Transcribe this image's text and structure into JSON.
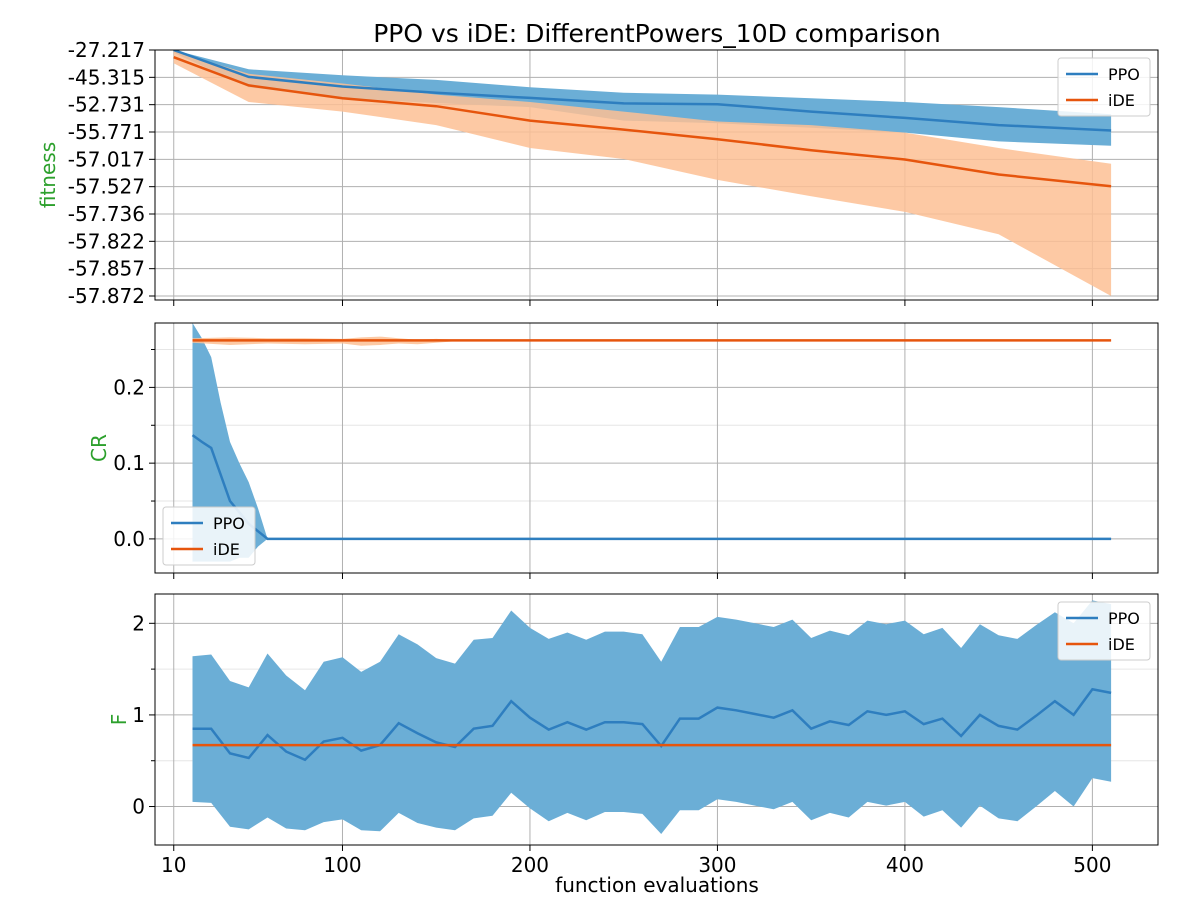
{
  "title": "PPO vs iDE: DifferentPowers_10D comparison",
  "xlabel": "function evaluations",
  "x_ticks": [
    10,
    100,
    200,
    300,
    400,
    500
  ],
  "legend_labels": [
    "PPO",
    "iDE"
  ],
  "colors": {
    "ppo_line": "#2e7ebf",
    "ppo_band": "#6baed6",
    "ide_line": "#e6550d",
    "ide_band": "#fdc094",
    "ylabel": "#2ca02c",
    "grid": "#b0b0b0"
  },
  "chart_data": [
    {
      "type": "line",
      "panel": "fitness",
      "ylabel": "fitness",
      "y_scale": "nonlinear (unevenly spaced tick labels, plotted by rank)",
      "y_tick_labels": [
        "-27.217",
        "-45.315",
        "-52.731",
        "-55.771",
        "-57.017",
        "-57.527",
        "-57.736",
        "-57.822",
        "-57.857",
        "-57.872"
      ],
      "xlim": [
        10,
        510
      ],
      "legend_position": "upper right",
      "series": [
        {
          "name": "PPO",
          "x": [
            10,
            50,
            100,
            150,
            200,
            250,
            300,
            350,
            400,
            450,
            510
          ],
          "mean": [
            -27.217,
            -45.0,
            -47.8,
            -49.5,
            -50.9,
            -52.4,
            -52.6,
            -53.5,
            -54.2,
            -55.0,
            -55.6
          ],
          "upper": [
            -27.0,
            -40.0,
            -44.0,
            -46.0,
            -48.0,
            -49.5,
            -50.0,
            -51.0,
            -52.0,
            -53.0,
            -53.8
          ],
          "lower": [
            -29.0,
            -48.0,
            -51.0,
            -52.3,
            -53.0,
            -54.5,
            -54.8,
            -55.3,
            -55.8,
            -56.2,
            -56.4
          ]
        },
        {
          "name": "iDE",
          "x": [
            10,
            50,
            100,
            150,
            200,
            250,
            300,
            350,
            400,
            450,
            510
          ],
          "mean": [
            -32.0,
            -47.5,
            -51.0,
            -52.9,
            -54.5,
            -55.5,
            -56.1,
            -56.6,
            -57.02,
            -57.3,
            -57.52
          ],
          "upper": [
            -28.0,
            -43.0,
            -47.0,
            -50.0,
            -52.0,
            -53.5,
            -54.6,
            -55.0,
            -55.8,
            -56.5,
            -57.1
          ],
          "lower": [
            -36.0,
            -52.0,
            -53.5,
            -55.0,
            -56.5,
            -57.0,
            -57.4,
            -57.6,
            -57.72,
            -57.8,
            -57.872
          ]
        }
      ]
    },
    {
      "type": "line",
      "panel": "CR",
      "ylabel": "CR",
      "ylim": [
        -0.045,
        0.285
      ],
      "y_ticks": [
        0.0,
        0.1,
        0.2
      ],
      "y_tick_labels": [
        "0.0",
        "0.1",
        "0.2"
      ],
      "xlim": [
        10,
        510
      ],
      "legend_position": "lower left",
      "series": [
        {
          "name": "PPO",
          "x": [
            20,
            25,
            30,
            35,
            40,
            45,
            50,
            55,
            60,
            510
          ],
          "mean": [
            0.137,
            0.128,
            0.12,
            0.085,
            0.05,
            0.035,
            0.02,
            0.01,
            0.0,
            0.0
          ],
          "upper": [
            0.285,
            0.265,
            0.24,
            0.18,
            0.128,
            0.1,
            0.075,
            0.04,
            0.0,
            0.0
          ],
          "lower": [
            -0.03,
            -0.03,
            -0.03,
            -0.03,
            -0.03,
            -0.025,
            -0.025,
            -0.01,
            0.0,
            0.0
          ]
        },
        {
          "name": "iDE",
          "x": [
            20,
            40,
            60,
            80,
            100,
            110,
            120,
            130,
            140,
            150,
            160,
            200,
            510
          ],
          "mean": [
            0.262,
            0.262,
            0.262,
            0.262,
            0.262,
            0.262,
            0.262,
            0.262,
            0.262,
            0.262,
            0.262,
            0.262,
            0.262
          ],
          "upper": [
            0.265,
            0.266,
            0.265,
            0.265,
            0.264,
            0.266,
            0.267,
            0.265,
            0.263,
            0.264,
            0.263,
            0.263,
            0.263
          ],
          "lower": [
            0.259,
            0.256,
            0.258,
            0.257,
            0.258,
            0.255,
            0.256,
            0.258,
            0.257,
            0.259,
            0.261,
            0.261,
            0.261
          ]
        }
      ]
    },
    {
      "type": "line",
      "panel": "F",
      "ylabel": "F",
      "ylim": [
        -0.42,
        2.32
      ],
      "y_ticks": [
        0,
        1,
        2
      ],
      "y_tick_labels": [
        "0",
        "1",
        "2"
      ],
      "xlim": [
        10,
        510
      ],
      "legend_position": "upper right",
      "series": [
        {
          "name": "PPO",
          "x": [
            20,
            30,
            40,
            50,
            60,
            70,
            80,
            90,
            100,
            110,
            120,
            130,
            140,
            150,
            160,
            170,
            180,
            190,
            200,
            210,
            220,
            230,
            240,
            250,
            260,
            270,
            280,
            290,
            300,
            310,
            320,
            330,
            340,
            350,
            360,
            370,
            380,
            390,
            400,
            410,
            420,
            430,
            440,
            450,
            460,
            470,
            480,
            490,
            500,
            510
          ],
          "mean": [
            0.85,
            0.85,
            0.58,
            0.53,
            0.78,
            0.6,
            0.51,
            0.71,
            0.75,
            0.61,
            0.67,
            0.91,
            0.8,
            0.7,
            0.65,
            0.85,
            0.88,
            1.15,
            0.97,
            0.84,
            0.92,
            0.84,
            0.92,
            0.92,
            0.9,
            0.66,
            0.96,
            0.96,
            1.08,
            1.05,
            1.01,
            0.97,
            1.05,
            0.85,
            0.93,
            0.89,
            1.04,
            1.0,
            1.04,
            0.9,
            0.96,
            0.77,
            1.0,
            0.88,
            0.84,
            0.99,
            1.15,
            1.0,
            1.28,
            1.24
          ],
          "upper": [
            1.64,
            1.66,
            1.37,
            1.3,
            1.67,
            1.43,
            1.27,
            1.58,
            1.63,
            1.47,
            1.58,
            1.88,
            1.77,
            1.62,
            1.56,
            1.82,
            1.84,
            2.14,
            1.95,
            1.83,
            1.9,
            1.82,
            1.91,
            1.91,
            1.88,
            1.58,
            1.96,
            1.96,
            2.07,
            2.04,
            2.0,
            1.96,
            2.04,
            1.84,
            1.92,
            1.87,
            2.03,
            1.99,
            2.03,
            1.88,
            1.95,
            1.73,
            1.99,
            1.87,
            1.83,
            1.98,
            2.12,
            2.0,
            2.25,
            2.21
          ],
          "lower": [
            0.05,
            0.04,
            -0.22,
            -0.25,
            -0.12,
            -0.24,
            -0.26,
            -0.17,
            -0.14,
            -0.26,
            -0.27,
            -0.07,
            -0.18,
            -0.23,
            -0.26,
            -0.13,
            -0.1,
            0.15,
            -0.02,
            -0.16,
            -0.07,
            -0.15,
            -0.06,
            -0.06,
            -0.08,
            -0.3,
            -0.04,
            -0.04,
            0.08,
            0.05,
            0.01,
            -0.03,
            0.05,
            -0.15,
            -0.07,
            -0.12,
            0.05,
            0.01,
            0.05,
            -0.11,
            -0.04,
            -0.23,
            0.01,
            -0.13,
            -0.16,
            0.0,
            0.17,
            0.0,
            0.31,
            0.27
          ]
        },
        {
          "name": "iDE",
          "x": [
            20,
            510
          ],
          "mean": [
            0.67,
            0.67
          ],
          "upper": [
            0.67,
            0.67
          ],
          "lower": [
            0.67,
            0.67
          ]
        }
      ]
    }
  ]
}
